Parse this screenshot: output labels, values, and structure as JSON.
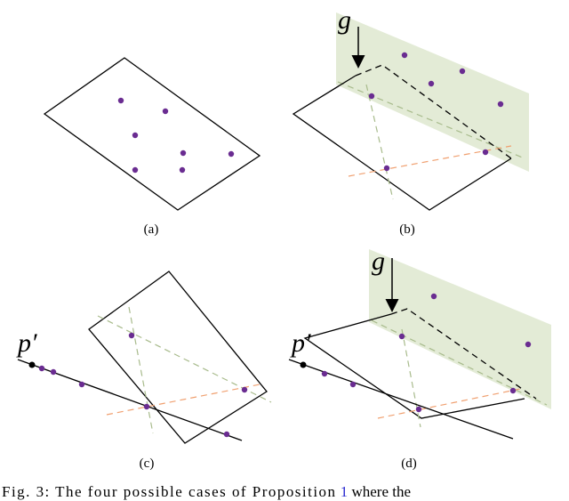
{
  "panels": [
    {
      "label": "(a)"
    },
    {
      "label": "(b)",
      "arrow_label": "g"
    },
    {
      "label": "(c)",
      "point_label": "p′"
    },
    {
      "label": "(d)",
      "arrow_label": "g",
      "point_label": "p′"
    }
  ],
  "caption": {
    "prefix": "Fig. 3: The four possible cases of Proposition",
    "ref": "1",
    "suffix": "where the"
  }
}
